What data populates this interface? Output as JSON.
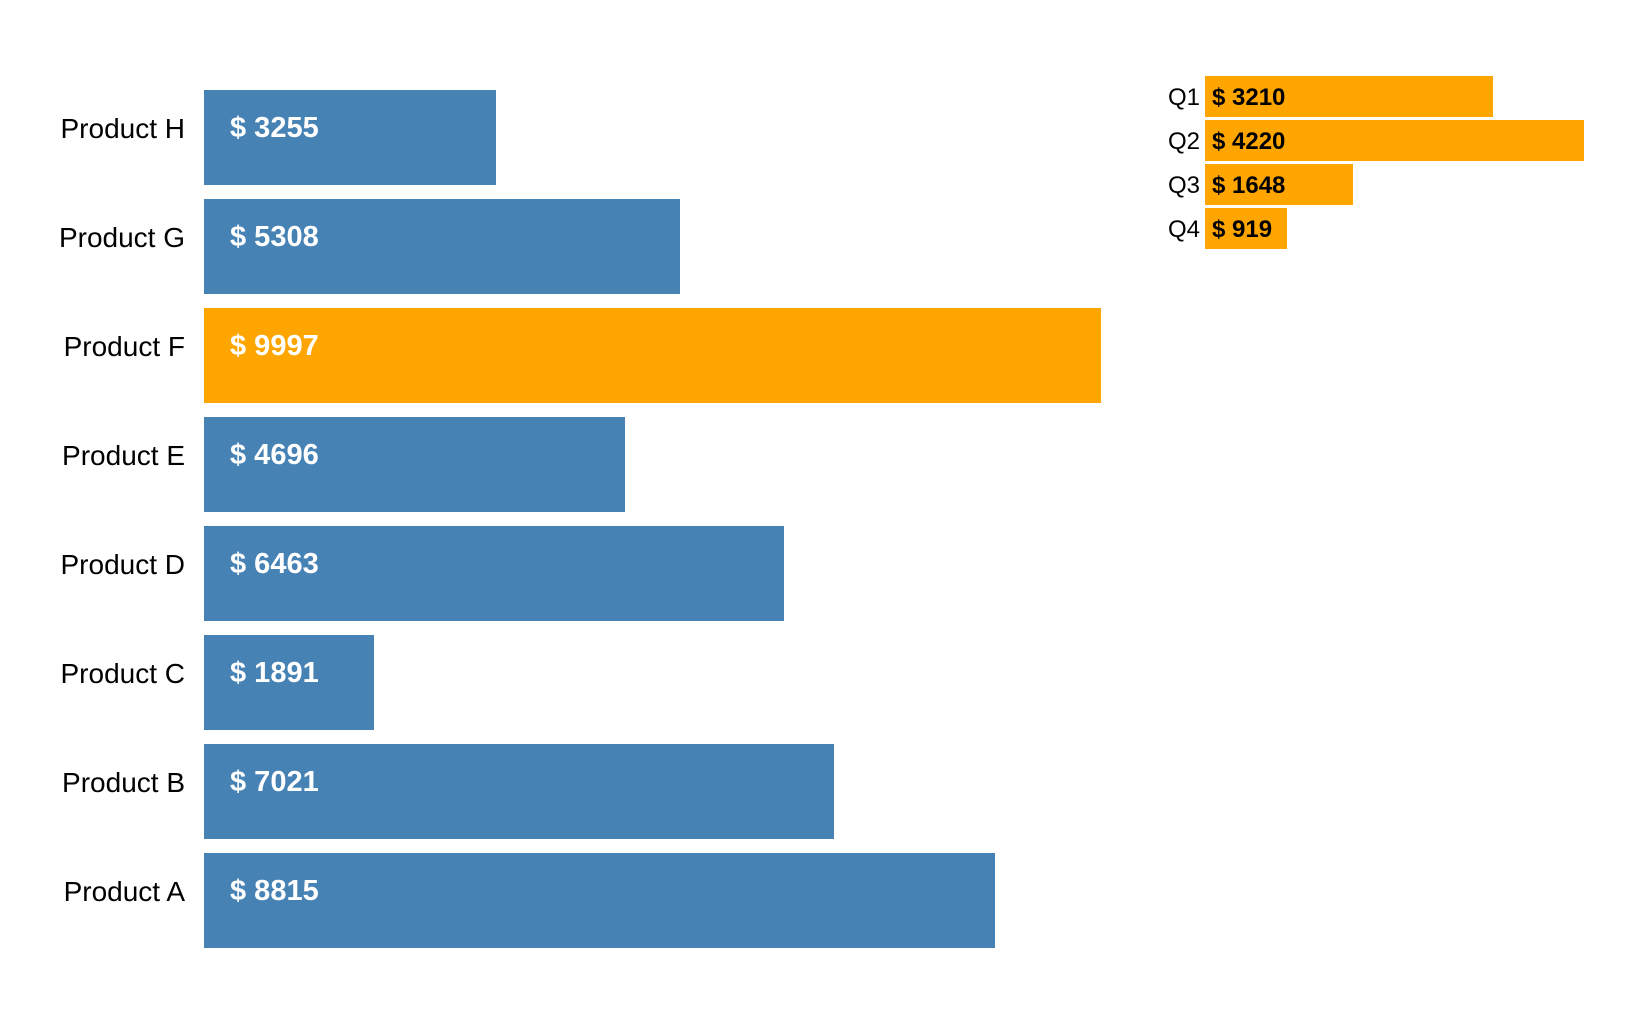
{
  "colors": {
    "background": "#FFFFFF",
    "bar_blue": "#4682B4",
    "bar_orange": "#FFA500",
    "main_value_text": "#FFFFFF",
    "mini_value_text": "#000000",
    "label_text": "#000000"
  },
  "chart_data": [
    {
      "type": "bar",
      "orientation": "horizontal",
      "title": "",
      "categories": [
        "Product H",
        "Product G",
        "Product F",
        "Product E",
        "Product D",
        "Product C",
        "Product B",
        "Product A"
      ],
      "values": [
        3255,
        5308,
        9997,
        4696,
        6463,
        1891,
        7021,
        8815
      ],
      "value_labels": [
        "$ 3255",
        "$ 5308",
        "$ 9997",
        "$ 4696",
        "$ 6463",
        "$ 1891",
        "$ 7021",
        "$ 8815"
      ],
      "highlighted_category": "Product F",
      "highlight_index": 2,
      "bar_color": "#4682B4",
      "highlight_color": "#FFA500",
      "value_text_color": "#FFFFFF",
      "label_color": "#000000",
      "xlim": [
        0,
        9997
      ],
      "grid": false,
      "axes_visible": false,
      "value_label_position": "inside-start"
    },
    {
      "type": "bar",
      "orientation": "horizontal",
      "title": "",
      "categories": [
        "Q1",
        "Q2",
        "Q3",
        "Q4"
      ],
      "values": [
        3210,
        4220,
        1648,
        919
      ],
      "value_labels": [
        "$ 3210",
        "$ 4220",
        "$ 1648",
        "$ 919"
      ],
      "bar_color": "#FFA500",
      "highlight_color": "#FFA500",
      "value_text_color": "#000000",
      "label_color": "#000000",
      "xlim": [
        0,
        9997
      ],
      "shares_x_scale_with_main": true,
      "grid": false,
      "axes_visible": false,
      "value_label_position": "inside-start"
    }
  ]
}
